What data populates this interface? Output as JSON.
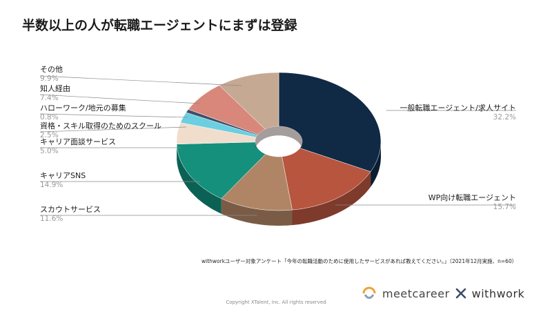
{
  "title": "半数以上の人が転職エージェントにまずは登録",
  "chart_data": {
    "type": "pie",
    "title": "半数以上の人が転職エージェントにまずは登録",
    "slices": [
      {
        "label": "一般転職エージェント/求人サイト",
        "value": 32.2,
        "value_label": "32.2%",
        "color": "#102a45",
        "side": "#0a1c30"
      },
      {
        "label": "WP向け転職エージェント",
        "value": 15.7,
        "value_label": "15.7%",
        "color": "#b8553f",
        "side": "#7e3a2b"
      },
      {
        "label": "スカウトサービス",
        "value": 11.6,
        "value_label": "11.6%",
        "color": "#b08566",
        "side": "#7a5c46"
      },
      {
        "label": "キャリアSNS",
        "value": 14.9,
        "value_label": "14.9%",
        "color": "#14907c",
        "side": "#0c6155"
      },
      {
        "label": "キャリア面談サービス",
        "value": 5.0,
        "value_label": "5.0%",
        "color": "#f0ddcc",
        "side": "#b8a595"
      },
      {
        "label": "資格・スキル取得のためのスクール",
        "value": 2.5,
        "value_label": "2.5%",
        "color": "#6ccfe0",
        "side": "#4b96a3"
      },
      {
        "label": "ハローワーク/地元の募集",
        "value": 0.8,
        "value_label": "0.8%",
        "color": "#3f4e6a",
        "side": "#2a3548"
      },
      {
        "label": "知人経由",
        "value": 7.4,
        "value_label": "7.4%",
        "color": "#d8877a",
        "side": "#9c6056"
      },
      {
        "label": "その他",
        "value": 9.9,
        "value_label": "9.9%",
        "color": "#c6a993",
        "side": "#8e7868"
      }
    ]
  },
  "footer": {
    "survey_note": "withworkユーザー対象アンケート「今年の転職活動のために使用したサービスがあれば教えてください。」（2021年12月実施、n=60）",
    "copyright": "Copyright XTalent, Inc. All rights reserved",
    "logo_left": "meetcareer",
    "logo_right": "withwork",
    "cross_icon_color": "#3c4a66",
    "meet_icon_color": "#f0a030"
  }
}
